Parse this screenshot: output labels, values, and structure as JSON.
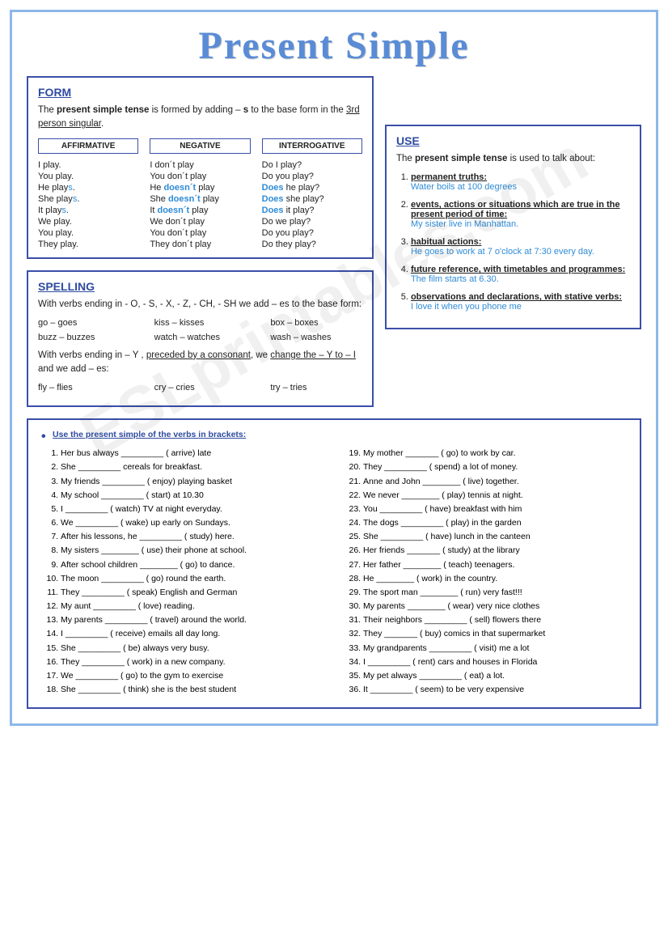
{
  "title": "Present Simple",
  "form": {
    "heading": "FORM",
    "intro_pre": "The ",
    "intro_bold": "present simple tense",
    "intro_mid": " is formed by adding – ",
    "intro_s": "s",
    "intro_after": " to the base form in the ",
    "intro_u": "3rd person singular",
    "headers": [
      "AFFIRMATIVE",
      "NEGATIVE",
      "INTERROGATIVE"
    ],
    "affirmative": [
      "I play.",
      "You play.",
      "He play<s>.",
      "She play<s>.",
      "It play<s>.",
      "We play.",
      "You play.",
      "They play."
    ],
    "negative": [
      "I don´t play",
      "You don´t play",
      "He <doesn´t> play",
      "She <doesn´t> play",
      "It <doesn´t> play",
      "We don´t play",
      "You don´t play",
      "They don´t play"
    ],
    "interrogative": [
      "Do I play?",
      "Do you play?",
      "<Does> he play?",
      "<Does> she play?",
      "<Does> it play?",
      "Do we play?",
      "Do you play?",
      "Do they play?"
    ]
  },
  "spelling": {
    "heading": "SPELLING",
    "rule1": "With verbs ending in - O, - S, - X, - Z, - CH, - SH we add – es to the base form:",
    "row1": [
      "go – goes",
      "kiss – kisses",
      "box – boxes"
    ],
    "row2": [
      "buzz – buzzes",
      "watch – watches",
      "wash – washes"
    ],
    "rule2_a": "With verbs ending in – Y , ",
    "rule2_u1": "preceded by a consonant",
    "rule2_b": ", we ",
    "rule2_u2": "change the – Y to – I",
    "rule2_c": " and we add – es:",
    "row3": [
      "fly – flies",
      "cry – cries",
      "try – tries"
    ]
  },
  "use": {
    "heading": "USE",
    "intro": "The present simple tense is used to talk about:",
    "items": [
      {
        "h": "permanent truths:",
        "ex": "Water boils at 100 degrees"
      },
      {
        "h": "events, actions or situations which are true in the present period of time:",
        "ex": "My sister live in Manhattan."
      },
      {
        "h": "habitual actions:",
        "ex": "He goes to work at 7 o'clock  at 7:30 every day."
      },
      {
        "h": "future reference, with timetables and programmes:",
        "ex": "The film starts at 6.30."
      },
      {
        "h": "observations and declarations, with stative verbs:",
        "ex": "I love it when you phone me"
      }
    ]
  },
  "exercise": {
    "title": "Use the present simple of the verbs in brackets:",
    "left": [
      "Her bus always _________ ( arrive) late",
      "She _________ cereals for breakfast.",
      "My friends _________ ( enjoy) playing basket",
      "My school _________ ( start) at 10.30",
      "I _________ ( watch) TV at night everyday.",
      "We _________ ( wake) up early on Sundays.",
      "After his lessons, he _________ ( study) here.",
      "My sisters ________ ( use) their phone at school.",
      "After school children ________ ( go) to dance.",
      "The moon _________ ( go) round the earth.",
      "They _________ ( speak) English and German",
      "My aunt _________ ( love) reading.",
      "My parents _________ ( travel) around the world.",
      "I _________ ( receive) emails all day long.",
      "She _________ ( be) always very busy.",
      "They _________ ( work) in a new company.",
      "We _________ ( go) to the gym to exercise",
      "She _________ ( think) she is the best student"
    ],
    "right": [
      "My mother _______ ( go) to work by car.",
      "They _________ ( spend) a lot of money.",
      "Anne and John ________ ( live) together.",
      "We  never ________ ( play) tennis at night.",
      "You _________ ( have) breakfast with him",
      "The dogs _________ ( play) in the garden",
      "She _________ ( have) lunch in the canteen",
      "Her friends _______ ( study) at the library",
      "Her father ________ ( teach) teenagers.",
      "He ________ ( work) in the country.",
      "The sport man ________ ( run) very fast!!!",
      "My parents ________ ( wear) very nice clothes",
      "Their neighbors _________ ( sell) flowers there",
      "They _______ ( buy) comics in that supermarket",
      "My grandparents _________ ( visit) me a lot",
      "I _________ ( rent) cars and houses in Florida",
      "My pet  always _________ ( eat)  a lot.",
      "It _________ ( seem) to be very expensive"
    ]
  },
  "watermark": "ESLprintables.com"
}
